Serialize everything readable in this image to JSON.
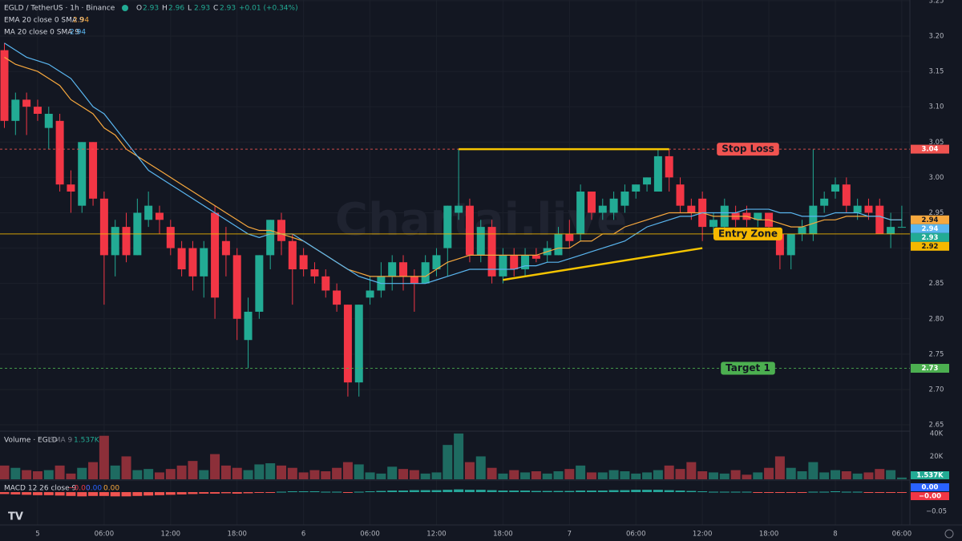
{
  "chart_data": {
    "type": "candlestick",
    "title": "EGLD / TetherUS · 1h · Binance",
    "ohlc_names": [
      "O",
      "H",
      "L",
      "C"
    ],
    "change_label": "+0.01 (+0.34%)",
    "watermark": "Chartai.live",
    "up_color": "#22ab94",
    "down_color": "#f23645",
    "categories": [
      null,
      null,
      null,
      "5",
      null,
      null,
      null,
      null,
      null,
      "06:00",
      null,
      null,
      null,
      null,
      null,
      "12:00",
      null,
      null,
      null,
      null,
      null,
      "18:00",
      null,
      null,
      null,
      null,
      null,
      "6",
      null,
      null,
      null,
      null,
      null,
      "06:00",
      null,
      null,
      null,
      null,
      null,
      "12:00",
      null,
      null,
      null,
      null,
      null,
      "18:00",
      null,
      null,
      null,
      null,
      null,
      "7",
      null,
      null,
      null,
      null,
      null,
      "06:00",
      null,
      null,
      null,
      null,
      null,
      "12:00",
      null,
      null,
      null,
      null,
      null,
      "18:00",
      null,
      null,
      null,
      null,
      null,
      "8",
      null,
      null,
      null,
      null,
      null,
      "06:00"
    ],
    "open": [
      3.18,
      3.08,
      3.11,
      3.1,
      3.07,
      3.08,
      2.99,
      2.96,
      3.05,
      2.97,
      2.89,
      2.93,
      2.89,
      2.94,
      2.95,
      2.93,
      2.9,
      2.9,
      2.86,
      2.95,
      2.91,
      2.89,
      2.77,
      2.81,
      2.89,
      2.94,
      2.91,
      2.89,
      2.87,
      2.86,
      2.84,
      2.82,
      2.71,
      2.83,
      2.84,
      2.86,
      2.88,
      2.86,
      2.85,
      2.87,
      2.9,
      2.95,
      2.96,
      2.89,
      2.93,
      2.86,
      2.89,
      2.87,
      2.89,
      2.89,
      2.89,
      2.92,
      2.92,
      2.98,
      2.95,
      2.95,
      2.96,
      2.98,
      2.99,
      2.98,
      3.03,
      2.99,
      2.96,
      2.97,
      2.93,
      2.93,
      2.95,
      2.95,
      2.94,
      2.95,
      2.92,
      2.89,
      2.92,
      2.92,
      2.96,
      2.98,
      2.99,
      2.95,
      2.96,
      2.96,
      2.92,
      2.93
    ],
    "high": [
      3.19,
      3.12,
      3.12,
      3.11,
      3.1,
      3.09,
      3.01,
      3.05,
      3.05,
      2.98,
      2.94,
      2.95,
      2.97,
      2.98,
      2.96,
      2.94,
      2.91,
      2.91,
      2.91,
      2.96,
      2.93,
      2.9,
      2.83,
      2.89,
      2.94,
      2.95,
      2.92,
      2.9,
      2.88,
      2.87,
      2.85,
      2.82,
      2.82,
      2.86,
      2.88,
      2.89,
      2.89,
      2.87,
      2.89,
      2.9,
      2.96,
      3.04,
      2.97,
      2.94,
      2.94,
      2.9,
      2.9,
      2.9,
      2.9,
      2.91,
      2.93,
      2.94,
      2.99,
      2.98,
      2.97,
      2.98,
      2.99,
      2.99,
      3.0,
      3.04,
      3.04,
      3.0,
      2.97,
      2.98,
      2.95,
      2.97,
      2.96,
      2.96,
      2.95,
      2.95,
      2.92,
      2.92,
      2.94,
      3.04,
      2.98,
      3.0,
      3.0,
      2.97,
      2.97,
      2.97,
      2.95,
      2.96
    ],
    "low": [
      3.07,
      3.06,
      3.06,
      3.08,
      3.04,
      2.98,
      2.95,
      2.95,
      2.96,
      2.82,
      2.86,
      2.88,
      2.89,
      2.93,
      2.92,
      2.89,
      2.86,
      2.84,
      2.83,
      2.8,
      2.86,
      2.77,
      2.73,
      2.8,
      2.87,
      2.89,
      2.82,
      2.86,
      2.85,
      2.83,
      2.81,
      2.69,
      2.69,
      2.82,
      2.83,
      2.84,
      2.84,
      2.81,
      2.85,
      2.86,
      2.86,
      2.94,
      2.88,
      2.88,
      2.85,
      2.85,
      2.86,
      2.86,
      2.88,
      2.88,
      2.89,
      2.9,
      2.91,
      2.94,
      2.94,
      2.94,
      2.95,
      2.97,
      2.98,
      2.98,
      2.98,
      2.95,
      2.94,
      2.91,
      2.92,
      2.92,
      2.93,
      2.93,
      2.93,
      2.92,
      2.87,
      2.87,
      2.91,
      2.91,
      2.95,
      2.97,
      2.95,
      2.94,
      2.94,
      2.92,
      2.9,
      2.93
    ],
    "close": [
      3.08,
      3.11,
      3.1,
      3.09,
      3.09,
      2.99,
      2.98,
      3.05,
      2.97,
      2.89,
      2.93,
      2.89,
      2.95,
      2.96,
      2.94,
      2.9,
      2.87,
      2.86,
      2.9,
      2.83,
      2.89,
      2.8,
      2.81,
      2.89,
      2.94,
      2.91,
      2.87,
      2.87,
      2.86,
      2.84,
      2.82,
      2.71,
      2.82,
      2.84,
      2.86,
      2.88,
      2.86,
      2.85,
      2.88,
      2.89,
      2.96,
      2.96,
      2.89,
      2.93,
      2.86,
      2.89,
      2.87,
      2.89,
      2.885,
      2.9,
      2.92,
      2.91,
      2.98,
      2.95,
      2.96,
      2.97,
      2.98,
      2.99,
      3.0,
      3.03,
      3.0,
      2.96,
      2.95,
      2.93,
      2.94,
      2.96,
      2.94,
      2.94,
      2.95,
      2.93,
      2.89,
      2.92,
      2.93,
      2.96,
      2.97,
      2.99,
      2.96,
      2.96,
      2.95,
      2.92,
      2.93,
      2.93
    ],
    "ylim": [
      2.641,
      3.251
    ],
    "yticks": [
      {
        "value": 2.65,
        "label": "2.65"
      },
      {
        "value": 2.7,
        "label": "2.70"
      },
      {
        "value": 2.75,
        "label": "2.75"
      },
      {
        "value": 2.8,
        "label": "2.80"
      },
      {
        "value": 2.85,
        "label": "2.85"
      },
      {
        "value": 2.9,
        "label": "2.90"
      },
      {
        "value": 2.95,
        "label": "2.95"
      },
      {
        "value": 3.0,
        "label": "3.00"
      },
      {
        "value": 3.05,
        "label": "3.05"
      },
      {
        "value": 3.1,
        "label": "3.10"
      },
      {
        "value": 3.15,
        "label": "3.15"
      },
      {
        "value": 3.2,
        "label": "3.20"
      },
      {
        "value": 3.25,
        "label": "3.25"
      }
    ],
    "grid": true,
    "series": [
      {
        "name": "EMA 20 close 0 SMA 9",
        "color": "#f7a83e",
        "values": [
          3.17,
          3.16,
          3.155,
          3.15,
          3.14,
          3.13,
          3.11,
          3.1,
          3.09,
          3.07,
          3.06,
          3.04,
          3.03,
          3.02,
          3.01,
          3.0,
          2.99,
          2.98,
          2.97,
          2.96,
          2.95,
          2.94,
          2.93,
          2.925,
          2.925,
          2.92,
          2.915,
          2.91,
          2.9,
          2.89,
          2.88,
          2.87,
          2.865,
          2.86,
          2.86,
          2.86,
          2.86,
          2.86,
          2.86,
          2.87,
          2.88,
          2.885,
          2.89,
          2.89,
          2.89,
          2.89,
          2.89,
          2.89,
          2.89,
          2.895,
          2.9,
          2.9,
          2.91,
          2.91,
          2.92,
          2.92,
          2.93,
          2.935,
          2.94,
          2.945,
          2.95,
          2.95,
          2.95,
          2.95,
          2.945,
          2.945,
          2.945,
          2.945,
          2.94,
          2.94,
          2.935,
          2.93,
          2.93,
          2.935,
          2.94,
          2.94,
          2.945,
          2.945,
          2.945,
          2.945,
          2.94,
          2.94
        ]
      },
      {
        "name": "MA 20 close 0 SMA 9",
        "color": "#5ab6f0",
        "values": [
          3.19,
          3.18,
          3.17,
          3.165,
          3.16,
          3.15,
          3.14,
          3.12,
          3.1,
          3.09,
          3.07,
          3.05,
          3.03,
          3.01,
          3.0,
          2.99,
          2.98,
          2.97,
          2.96,
          2.95,
          2.94,
          2.93,
          2.92,
          2.915,
          2.92,
          2.92,
          2.92,
          2.91,
          2.9,
          2.89,
          2.88,
          2.87,
          2.86,
          2.855,
          2.85,
          2.85,
          2.85,
          2.85,
          2.85,
          2.855,
          2.86,
          2.865,
          2.87,
          2.87,
          2.87,
          2.87,
          2.87,
          2.875,
          2.875,
          2.88,
          2.88,
          2.885,
          2.89,
          2.895,
          2.9,
          2.905,
          2.91,
          2.92,
          2.93,
          2.935,
          2.94,
          2.945,
          2.945,
          2.95,
          2.95,
          2.95,
          2.95,
          2.955,
          2.955,
          2.955,
          2.95,
          2.95,
          2.945,
          2.945,
          2.945,
          2.95,
          2.95,
          2.95,
          2.945,
          2.945,
          2.94,
          2.94
        ]
      }
    ],
    "levels": [
      {
        "text": "Stop Loss",
        "value": 3.04,
        "color": "#f05350",
        "dashed": true
      },
      {
        "text": "Entry Zone",
        "value": 2.92,
        "color": "#f5b800",
        "dashed": false
      },
      {
        "text": "Target 1",
        "value": 2.73,
        "color": "#4caf50",
        "dashed": true
      }
    ],
    "trendlines": [
      {
        "color": "#f5c400",
        "x": [
          41,
          60
        ],
        "y": [
          3.04,
          3.04
        ]
      },
      {
        "color": "#f5c400",
        "x": [
          45,
          63
        ],
        "y": [
          2.855,
          2.9
        ]
      }
    ],
    "volume": {
      "name": "Volume · EGLD",
      "ma_label": "SMA 9",
      "last_label": "1.537K",
      "values": [
        12000,
        10000,
        8000,
        7000,
        8000,
        12000,
        5000,
        10000,
        15000,
        38000,
        12000,
        20000,
        8000,
        9000,
        6000,
        9000,
        12000,
        16000,
        8000,
        22000,
        12000,
        10000,
        8000,
        13000,
        14000,
        12000,
        10000,
        6000,
        8000,
        7000,
        10000,
        15000,
        13000,
        6000,
        5000,
        11000,
        9000,
        8000,
        5000,
        6000,
        30000,
        40000,
        15000,
        20000,
        10000,
        5000,
        8000,
        6000,
        7000,
        5000,
        7000,
        9000,
        12000,
        6000,
        6000,
        8000,
        7000,
        5000,
        6000,
        8000,
        12000,
        9000,
        15000,
        7000,
        6000,
        5000,
        8000,
        4000,
        6000,
        10000,
        20000,
        10000,
        7000,
        15000,
        6000,
        8000,
        7000,
        5000,
        6000,
        9000,
        8000,
        1537
      ],
      "ylim": [
        0,
        42000
      ],
      "yticks": [
        {
          "value": 20000,
          "label": "20K"
        },
        {
          "value": 40000,
          "label": "40K"
        }
      ]
    },
    "macd": {
      "name": "MACD 12 26 close 9",
      "value_labels": [
        "−0.00",
        "0.00",
        "0.00"
      ],
      "histogram": [
        -0.005,
        -0.006,
        -0.007,
        -0.008,
        -0.008,
        -0.009,
        -0.01,
        -0.011,
        -0.01,
        -0.01,
        -0.011,
        -0.011,
        -0.01,
        -0.009,
        -0.008,
        -0.007,
        -0.006,
        -0.005,
        -0.004,
        -0.004,
        -0.003,
        -0.004,
        -0.003,
        -0.002,
        -0.001,
        0.001,
        0.002,
        0.002,
        0.002,
        0.001,
        0.001,
        -0.002,
        0.001,
        0.002,
        0.003,
        0.004,
        0.004,
        0.005,
        0.005,
        0.005,
        0.006,
        0.007,
        0.006,
        0.006,
        0.005,
        0.004,
        0.004,
        0.004,
        0.003,
        0.003,
        0.003,
        0.003,
        0.004,
        0.004,
        0.004,
        0.005,
        0.005,
        0.006,
        0.006,
        0.006,
        0.005,
        0.004,
        0.003,
        0.002,
        0.001,
        0.001,
        0.001,
        0.001,
        -0.001,
        -0.001,
        -0.002,
        -0.002,
        -0.001,
        0.001,
        0.001,
        0.002,
        0.001,
        0.001,
        -0.001,
        -0.002,
        -0.002,
        -0.002
      ],
      "ylim": [
        -0.085,
        0.029
      ],
      "yticks": [
        {
          "value": -0.05,
          "label": "−0.05"
        }
      ]
    }
  }
}
